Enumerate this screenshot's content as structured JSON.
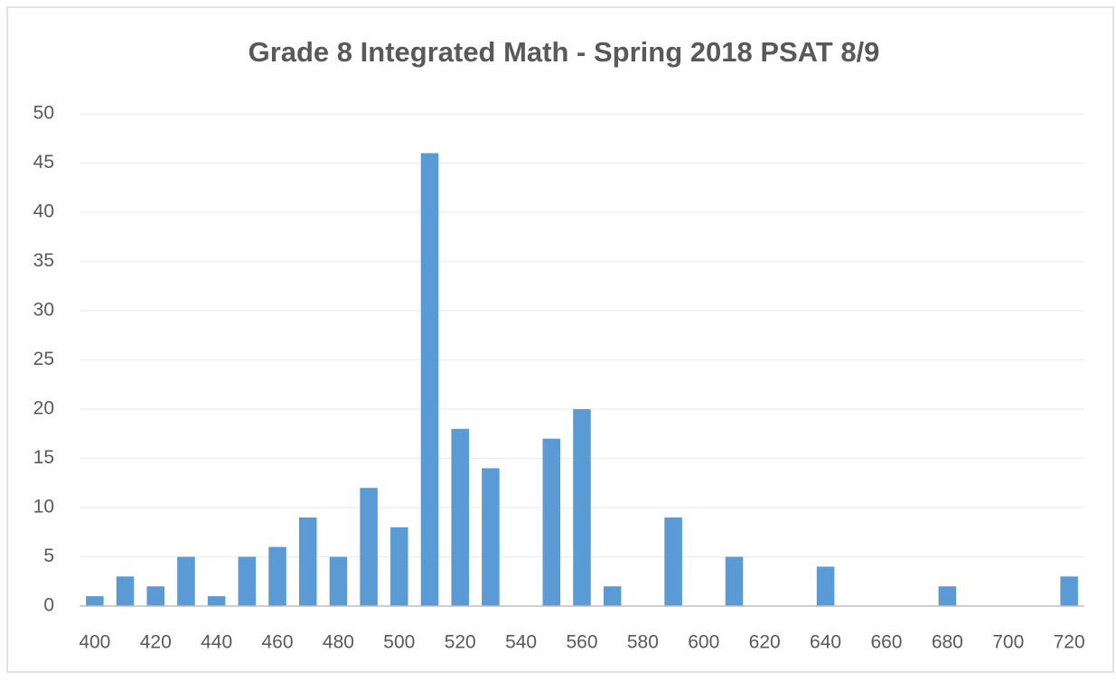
{
  "chart_data": {
    "type": "bar",
    "title": "Grade 8 Integrated Math - Spring 2018 PSAT 8/9",
    "categories": [
      "400",
      null,
      "420",
      null,
      "440",
      null,
      "460",
      null,
      "480",
      null,
      "500",
      null,
      "520",
      null,
      "540",
      null,
      "560",
      null,
      "580",
      null,
      "600",
      null,
      "620",
      null,
      "640",
      null,
      "660",
      null,
      "680",
      null,
      "700",
      null,
      "720"
    ],
    "values": [
      1,
      3,
      2,
      5,
      1,
      5,
      6,
      9,
      5,
      12,
      8,
      46,
      18,
      14,
      0,
      17,
      20,
      2,
      0,
      9,
      0,
      5,
      0,
      0,
      4,
      0,
      0,
      0,
      2,
      0,
      0,
      0,
      3
    ],
    "color": "#5b9bd5",
    "ylim": [
      0,
      50
    ],
    "yticks": [
      0,
      5,
      10,
      15,
      20,
      25,
      30,
      35,
      40,
      45,
      50
    ],
    "grid": true
  }
}
